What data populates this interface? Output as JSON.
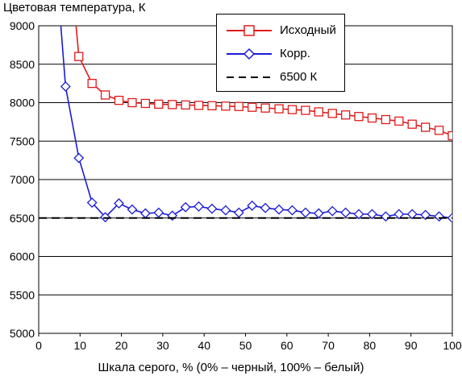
{
  "chart_data": {
    "type": "line",
    "title": "Цветовая температура, К",
    "xlabel": "Шкала серого, % (0% – черный, 100% – белый)",
    "ylabel": "",
    "xlim": [
      0,
      100
    ],
    "ylim": [
      5000,
      9000
    ],
    "xticks": [
      "0",
      "10",
      "20",
      "30",
      "40",
      "50",
      "60",
      "70",
      "80",
      "90",
      "100"
    ],
    "yticks": [
      "5000",
      "5500",
      "6000",
      "6500",
      "7000",
      "7500",
      "8000",
      "8500",
      "9000"
    ],
    "grid": "horizontal",
    "legend_position": "top-right",
    "series": [
      {
        "name": "Исходный",
        "color": "#e01b1b",
        "marker": "square",
        "x": [
          6.5,
          9.7,
          12.9,
          16.1,
          19.4,
          22.6,
          25.8,
          29.0,
          32.3,
          35.5,
          38.7,
          41.9,
          45.2,
          48.4,
          51.6,
          54.8,
          58.1,
          61.3,
          64.5,
          67.7,
          71.0,
          74.2,
          77.4,
          80.6,
          83.9,
          87.1,
          90.3,
          93.5,
          96.8,
          100
        ],
        "y": [
          10500,
          8600,
          8250,
          8100,
          8030,
          8000,
          7990,
          7980,
          7975,
          7970,
          7965,
          7960,
          7955,
          7950,
          7940,
          7930,
          7920,
          7910,
          7900,
          7880,
          7860,
          7840,
          7820,
          7800,
          7780,
          7760,
          7720,
          7680,
          7640,
          7570
        ]
      },
      {
        "name": "Корр.",
        "color": "#1b1bd6",
        "marker": "diamond",
        "x": [
          3.2,
          6.5,
          9.7,
          12.9,
          16.1,
          19.4,
          22.6,
          25.8,
          29.0,
          32.3,
          35.5,
          38.7,
          41.9,
          45.2,
          48.4,
          51.6,
          54.8,
          58.1,
          61.3,
          64.5,
          67.7,
          71.0,
          74.2,
          77.4,
          80.6,
          83.9,
          87.1,
          90.3,
          93.5,
          96.8,
          100
        ],
        "y": [
          10500,
          8210,
          7280,
          6700,
          6510,
          6690,
          6610,
          6560,
          6570,
          6530,
          6640,
          6650,
          6620,
          6600,
          6570,
          6660,
          6630,
          6610,
          6600,
          6570,
          6560,
          6590,
          6570,
          6550,
          6550,
          6520,
          6550,
          6550,
          6540,
          6520,
          6500
        ]
      },
      {
        "name": "6500 К",
        "color": "#000000",
        "marker": "none",
        "dashed": true,
        "x": [
          0,
          100
        ],
        "y": [
          6500,
          6500
        ]
      }
    ]
  }
}
